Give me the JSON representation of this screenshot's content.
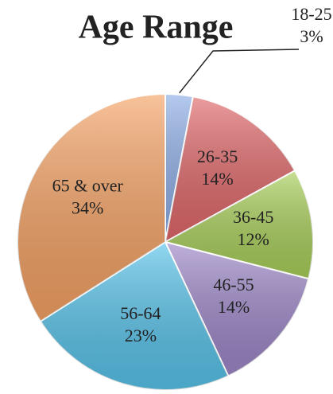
{
  "chart_data": {
    "type": "pie",
    "title": "Age Range",
    "categories": [
      "18-25",
      "26-35",
      "36-45",
      "46-55",
      "56-64",
      "65 & over"
    ],
    "values": [
      3,
      14,
      12,
      14,
      23,
      34
    ],
    "value_labels": [
      "3%",
      "14%",
      "12%",
      "14%",
      "23%",
      "34%"
    ],
    "colors": [
      "#8eaee6",
      "#e0686a",
      "#a9cf5a",
      "#9d87c8",
      "#58c3ea",
      "#f5a264"
    ]
  }
}
